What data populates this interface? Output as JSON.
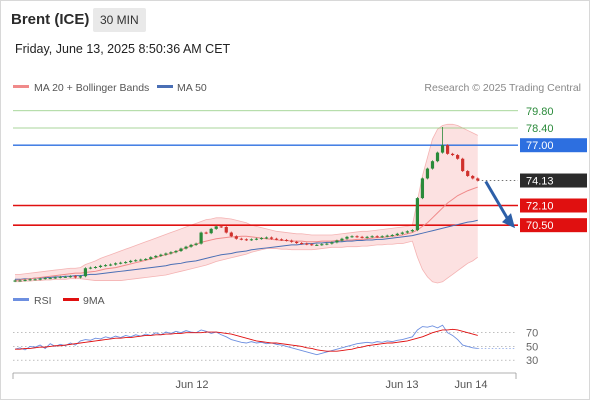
{
  "header": {
    "title": "Brent (ICE)",
    "timeframe": "30 MIN",
    "timestamp": "Friday, June 13, 2025 8:50:36 AM CET"
  },
  "legend": {
    "ma_label": "MA 20 + Bollinger Bands",
    "ma50_label": "MA 50",
    "credit": "Research © 2025 Trading Central"
  },
  "rsi_legend": {
    "rsi": "RSI",
    "ma": "9MA"
  },
  "colors": {
    "up": "#2a8a3a",
    "down": "#d0312d",
    "ma20": "#f08a8a",
    "ma50": "#4a6fb5",
    "band": "#fbd9d9",
    "res_green": "#8cc97a",
    "blue_level": "#2d6fe0",
    "red_level": "#e01010",
    "arrow": "#2d5fa8"
  },
  "chart_data": [
    {
      "type": "candlestick",
      "title": "",
      "x_labels": [
        "Jun 12",
        "Jun 13",
        "Jun 14"
      ],
      "ylim": [
        65.8,
        81.0
      ],
      "last_price": 74.13,
      "levels": [
        {
          "label": "79.80",
          "value": 79.8,
          "style": "green-line"
        },
        {
          "label": "78.40",
          "value": 78.4,
          "style": "green-line"
        },
        {
          "label": "77.00",
          "value": 77.0,
          "style": "blue-line"
        },
        {
          "label": "74.13",
          "value": 74.13,
          "style": "last-price"
        },
        {
          "label": "72.10",
          "value": 72.1,
          "style": "red-line"
        },
        {
          "label": "70.50",
          "value": 70.5,
          "style": "red-line"
        }
      ],
      "close": [
        66.0,
        66.0,
        66.05,
        66.1,
        66.1,
        66.15,
        66.2,
        66.2,
        66.25,
        66.3,
        66.3,
        66.35,
        66.25,
        66.35,
        67.0,
        67.05,
        67.1,
        67.2,
        67.25,
        67.3,
        67.4,
        67.45,
        67.5,
        67.6,
        67.65,
        67.7,
        67.75,
        67.9,
        68.0,
        68.1,
        68.2,
        68.3,
        68.4,
        68.6,
        68.75,
        68.9,
        69.0,
        69.9,
        69.85,
        70.2,
        70.4,
        70.35,
        69.9,
        69.6,
        69.4,
        69.35,
        69.3,
        69.35,
        69.4,
        69.45,
        69.5,
        69.4,
        69.35,
        69.3,
        69.25,
        69.15,
        69.05,
        69.0,
        68.95,
        68.9,
        68.9,
        68.95,
        69.0,
        69.1,
        69.25,
        69.4,
        69.55,
        69.6,
        69.55,
        69.5,
        69.55,
        69.6,
        69.55,
        69.6,
        69.65,
        69.7,
        69.8,
        69.9,
        70.0,
        70.1,
        72.7,
        74.3,
        75.1,
        75.7,
        76.4,
        77.0,
        76.3,
        76.2,
        75.9,
        74.9,
        74.5,
        74.3,
        74.13
      ],
      "ma20": [
        66.0,
        66.05,
        66.1,
        66.15,
        66.2,
        66.25,
        66.3,
        66.35,
        66.4,
        66.45,
        66.5,
        66.55,
        66.6,
        66.6,
        66.65,
        66.7,
        66.75,
        66.85,
        66.95,
        67.0,
        67.05,
        67.15,
        67.25,
        67.35,
        67.45,
        67.55,
        67.65,
        67.75,
        67.85,
        68.0,
        68.1,
        68.2,
        68.35,
        68.5,
        68.65,
        68.8,
        68.95,
        69.1,
        69.2,
        69.3,
        69.4,
        69.45,
        69.5,
        69.55,
        69.55,
        69.6,
        69.6,
        69.55,
        69.5,
        69.45,
        69.4,
        69.35,
        69.3,
        69.25,
        69.25,
        69.2,
        69.2,
        69.2,
        69.15,
        69.15,
        69.15,
        69.2,
        69.2,
        69.2,
        69.25,
        69.25,
        69.3,
        69.3,
        69.35,
        69.35,
        69.4,
        69.45,
        69.5,
        69.5,
        69.55,
        69.6,
        69.65,
        69.7,
        69.8,
        69.9,
        70.1,
        70.4,
        70.7,
        71.1,
        71.5,
        71.9,
        72.3,
        72.6,
        72.9,
        73.1,
        73.3,
        73.45,
        73.6
      ],
      "ma50": [
        66.1,
        66.1,
        66.15,
        66.15,
        66.2,
        66.2,
        66.25,
        66.25,
        66.3,
        66.3,
        66.35,
        66.35,
        66.4,
        66.4,
        66.45,
        66.5,
        66.5,
        66.55,
        66.6,
        66.65,
        66.7,
        66.75,
        66.8,
        66.85,
        66.9,
        66.95,
        67.0,
        67.05,
        67.1,
        67.15,
        67.2,
        67.3,
        67.35,
        67.4,
        67.5,
        67.55,
        67.6,
        67.7,
        67.8,
        67.9,
        68.0,
        68.1,
        68.15,
        68.2,
        68.3,
        68.35,
        68.4,
        68.5,
        68.55,
        68.6,
        68.65,
        68.7,
        68.75,
        68.8,
        68.85,
        68.9,
        68.9,
        68.95,
        69.0,
        69.0,
        69.05,
        69.05,
        69.1,
        69.1,
        69.15,
        69.15,
        69.2,
        69.2,
        69.25,
        69.25,
        69.3,
        69.3,
        69.35,
        69.35,
        69.4,
        69.45,
        69.5,
        69.55,
        69.6,
        69.65,
        69.75,
        69.85,
        69.95,
        70.05,
        70.15,
        70.25,
        70.35,
        70.45,
        70.55,
        70.65,
        70.75,
        70.8,
        70.9
      ],
      "bb_upper": [
        66.5,
        66.5,
        66.55,
        66.6,
        66.65,
        66.7,
        66.75,
        66.8,
        66.85,
        66.9,
        66.95,
        67.0,
        67.0,
        67.05,
        67.3,
        67.45,
        67.6,
        67.8,
        67.95,
        68.1,
        68.25,
        68.4,
        68.55,
        68.7,
        68.85,
        69.0,
        69.15,
        69.3,
        69.45,
        69.6,
        69.75,
        69.9,
        70.05,
        70.2,
        70.35,
        70.5,
        70.65,
        70.8,
        70.95,
        71.0,
        71.1,
        71.1,
        71.05,
        71.0,
        70.9,
        70.8,
        70.7,
        70.5,
        70.4,
        70.3,
        70.2,
        70.1,
        70.0,
        69.95,
        69.9,
        69.85,
        69.8,
        69.8,
        69.75,
        69.7,
        69.7,
        69.7,
        69.7,
        69.7,
        69.75,
        69.8,
        69.85,
        69.9,
        69.95,
        70.0,
        70.0,
        70.05,
        70.1,
        70.15,
        70.2,
        70.25,
        70.3,
        70.35,
        70.4,
        70.5,
        72.5,
        74.5,
        76.0,
        77.5,
        78.3,
        78.6,
        78.7,
        78.7,
        78.6,
        78.4,
        78.2,
        78.0,
        77.8
      ],
      "bb_lower": [
        65.9,
        65.9,
        65.95,
        65.95,
        66.0,
        66.0,
        66.05,
        66.05,
        66.1,
        66.1,
        66.1,
        66.15,
        66.15,
        66.15,
        66.1,
        66.05,
        66.0,
        66.0,
        66.0,
        66.0,
        66.0,
        66.0,
        66.05,
        66.1,
        66.15,
        66.2,
        66.25,
        66.3,
        66.35,
        66.4,
        66.45,
        66.55,
        66.65,
        66.75,
        66.85,
        66.95,
        67.05,
        67.15,
        67.25,
        67.4,
        67.55,
        67.65,
        67.75,
        67.85,
        67.95,
        68.05,
        68.15,
        68.3,
        68.4,
        68.5,
        68.6,
        68.6,
        68.6,
        68.55,
        68.55,
        68.5,
        68.5,
        68.5,
        68.5,
        68.5,
        68.55,
        68.6,
        68.65,
        68.7,
        68.7,
        68.7,
        68.75,
        68.75,
        68.75,
        68.8,
        68.8,
        68.85,
        68.9,
        68.9,
        68.95,
        68.95,
        69.0,
        69.0,
        69.1,
        69.2,
        67.9,
        66.9,
        66.3,
        65.9,
        65.8,
        65.9,
        66.2,
        66.5,
        66.8,
        67.1,
        67.4,
        67.6,
        67.9
      ],
      "forecast": {
        "from": 74.13,
        "to": 70.5,
        "direction": "down"
      }
    },
    {
      "type": "line",
      "title": "",
      "series_names": [
        "RSI",
        "9MA"
      ],
      "ylim": [
        20,
        90
      ],
      "yticks": [
        30,
        50,
        70
      ],
      "rsi": [
        46,
        48,
        45,
        50,
        49,
        52,
        47,
        54,
        50,
        53,
        51,
        55,
        52,
        58,
        60,
        59,
        62,
        61,
        64,
        62,
        65,
        63,
        66,
        64,
        67,
        65,
        68,
        66,
        70,
        67,
        71,
        69,
        72,
        70,
        73,
        71,
        70,
        74,
        72,
        69,
        71,
        67,
        64,
        60,
        58,
        56,
        55,
        57,
        55,
        56,
        54,
        55,
        53,
        52,
        50,
        48,
        46,
        44,
        42,
        40,
        38,
        40,
        42,
        44,
        46,
        48,
        50,
        52,
        54,
        55,
        56,
        55,
        57,
        56,
        58,
        57,
        59,
        60,
        62,
        64,
        74,
        79,
        78,
        80,
        77,
        81,
        70,
        66,
        60,
        52,
        50,
        48,
        47
      ],
      "rsi_ma": [
        46,
        46,
        47,
        47,
        48,
        49,
        49,
        50,
        51,
        51,
        52,
        53,
        54,
        55,
        56,
        57,
        58,
        59,
        60,
        61,
        62,
        62,
        63,
        63,
        64,
        65,
        66,
        66,
        67,
        67,
        68,
        68,
        69,
        69,
        70,
        70,
        70,
        70,
        71,
        71,
        71,
        70,
        69,
        68,
        66,
        64,
        62,
        60,
        58,
        57,
        56,
        55,
        55,
        54,
        53,
        52,
        51,
        50,
        48,
        47,
        45,
        44,
        43,
        43,
        43,
        44,
        45,
        46,
        48,
        49,
        51,
        52,
        53,
        54,
        55,
        55,
        56,
        57,
        58,
        60,
        62,
        64,
        67,
        70,
        72,
        74,
        74,
        75,
        74,
        72,
        70,
        68,
        66
      ]
    }
  ]
}
